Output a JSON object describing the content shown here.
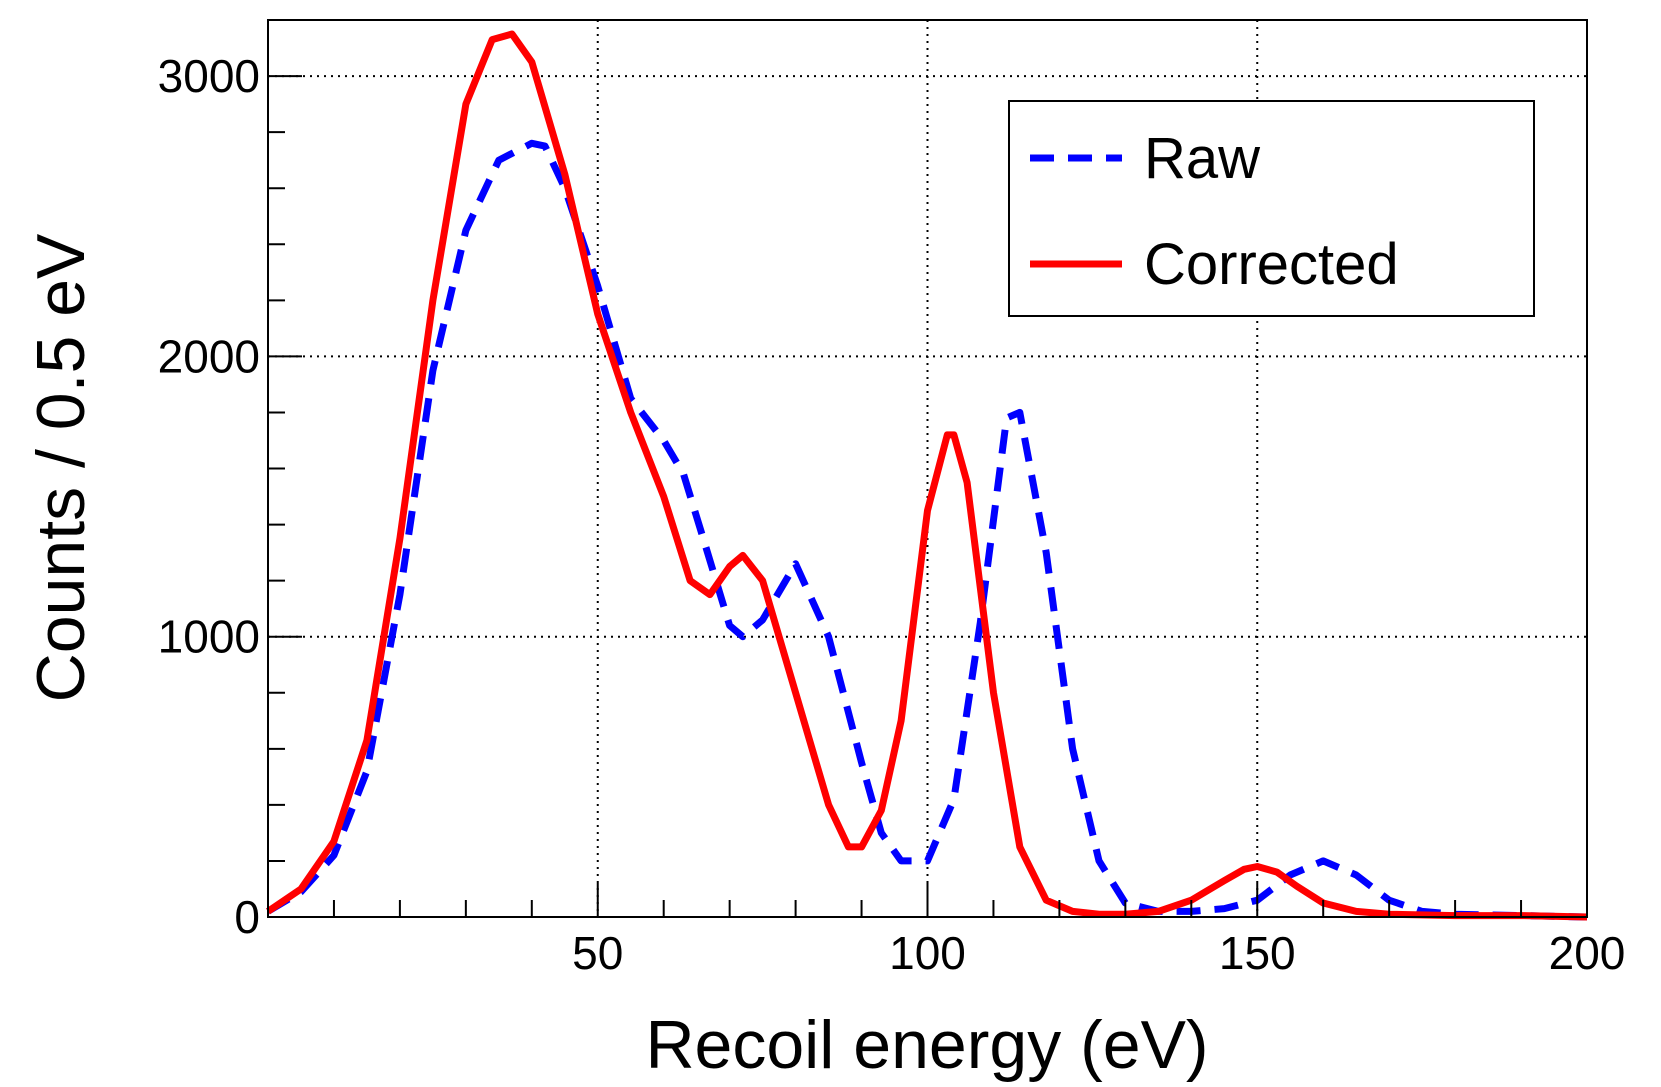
{
  "chart_data": {
    "type": "line",
    "xlabel": "Recoil energy (eV)",
    "ylabel": "Counts / 0.5 eV",
    "xlim": [
      0,
      200
    ],
    "ylim": [
      0,
      3200
    ],
    "x_ticks": [
      50,
      100,
      150,
      200
    ],
    "x_tick_labels": [
      "50",
      "100",
      "150",
      "200"
    ],
    "y_ticks": [
      0,
      1000,
      2000,
      3000
    ],
    "y_tick_labels": [
      "0",
      "1000",
      "2000",
      "3000"
    ],
    "grid": true,
    "legend_position": "top-right",
    "series": [
      {
        "name": "Raw",
        "color": "#0000ff",
        "style": "dashed",
        "x": [
          0,
          5,
          10,
          15,
          20,
          25,
          30,
          35,
          40,
          42,
          45,
          50,
          55,
          60,
          63,
          66,
          70,
          72,
          75,
          80,
          85,
          90,
          93,
          96,
          100,
          104,
          108,
          112,
          114,
          118,
          122,
          126,
          130,
          135,
          140,
          145,
          150,
          155,
          160,
          165,
          170,
          175,
          180,
          190,
          200
        ],
        "y": [
          20,
          90,
          220,
          520,
          1150,
          1950,
          2450,
          2700,
          2760,
          2750,
          2600,
          2250,
          1850,
          1700,
          1580,
          1350,
          1040,
          1000,
          1060,
          1260,
          1000,
          550,
          300,
          200,
          200,
          420,
          1050,
          1780,
          1800,
          1300,
          600,
          200,
          50,
          20,
          20,
          30,
          60,
          150,
          200,
          150,
          60,
          20,
          10,
          5,
          0
        ]
      },
      {
        "name": "Corrected",
        "color": "#ff0000",
        "style": "solid",
        "x": [
          0,
          5,
          10,
          15,
          20,
          25,
          30,
          34,
          37,
          40,
          45,
          50,
          55,
          60,
          64,
          67,
          70,
          72,
          75,
          80,
          85,
          88,
          90,
          93,
          96,
          100,
          103,
          104,
          106,
          110,
          114,
          118,
          122,
          126,
          130,
          135,
          140,
          145,
          148,
          150,
          153,
          156,
          160,
          165,
          170,
          180,
          190,
          200
        ],
        "y": [
          20,
          100,
          270,
          630,
          1350,
          2200,
          2900,
          3130,
          3150,
          3050,
          2650,
          2150,
          1800,
          1500,
          1200,
          1150,
          1250,
          1290,
          1200,
          800,
          400,
          250,
          250,
          380,
          700,
          1450,
          1720,
          1720,
          1550,
          800,
          250,
          60,
          20,
          10,
          10,
          20,
          60,
          130,
          170,
          180,
          160,
          110,
          50,
          20,
          10,
          5,
          5,
          0
        ]
      }
    ]
  }
}
